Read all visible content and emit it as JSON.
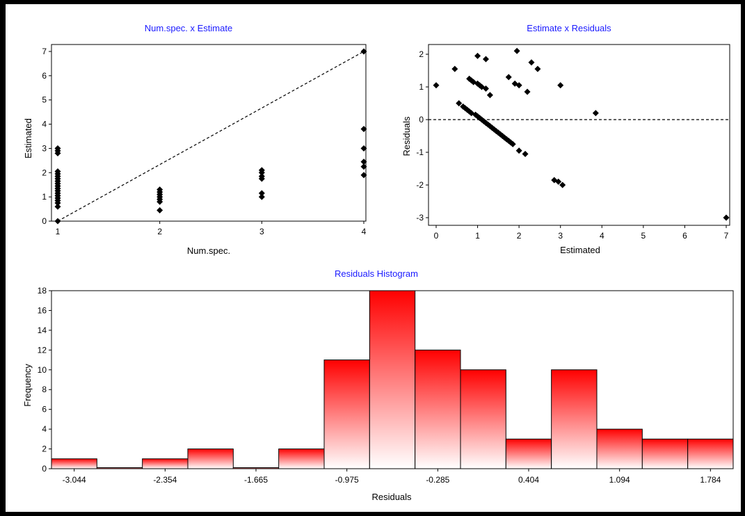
{
  "chart_data": [
    {
      "id": "scatter1",
      "type": "scatter",
      "title": "Num.spec. x Estimate",
      "xlabel": "Num.spec.",
      "ylabel": "Estimated",
      "xlim": [
        1,
        4
      ],
      "ylim": [
        0,
        7.2
      ],
      "xticks": [
        1,
        2,
        3,
        4
      ],
      "yticks": [
        0,
        1,
        2,
        3,
        4,
        5,
        6,
        7
      ],
      "reference_line": {
        "style": "dashed",
        "from": [
          1,
          0
        ],
        "to": [
          4,
          7
        ]
      },
      "points": [
        [
          1,
          0.0
        ],
        [
          1,
          0.6
        ],
        [
          1,
          0.75
        ],
        [
          1,
          0.85
        ],
        [
          1,
          0.95
        ],
        [
          1,
          1.05
        ],
        [
          1,
          1.15
        ],
        [
          1,
          1.25
        ],
        [
          1,
          1.35
        ],
        [
          1,
          1.45
        ],
        [
          1,
          1.55
        ],
        [
          1,
          1.65
        ],
        [
          1,
          1.75
        ],
        [
          1,
          1.85
        ],
        [
          1,
          1.95
        ],
        [
          1,
          2.05
        ],
        [
          1,
          2.8
        ],
        [
          1,
          2.9
        ],
        [
          1,
          3.0
        ],
        [
          2,
          0.45
        ],
        [
          2,
          0.8
        ],
        [
          2,
          0.9
        ],
        [
          2,
          1.0
        ],
        [
          2,
          1.1
        ],
        [
          2,
          1.2
        ],
        [
          2,
          1.3
        ],
        [
          3,
          1.0
        ],
        [
          3,
          1.15
        ],
        [
          3,
          1.75
        ],
        [
          3,
          1.85
        ],
        [
          3,
          2.0
        ],
        [
          3,
          2.1
        ],
        [
          4,
          1.9
        ],
        [
          4,
          2.25
        ],
        [
          4,
          2.45
        ],
        [
          4,
          3.0
        ],
        [
          4,
          3.8
        ],
        [
          4,
          7.0
        ]
      ],
      "color": "#000000"
    },
    {
      "id": "scatter2",
      "type": "scatter",
      "title": "Estimate x Residuals",
      "xlabel": "Estimated",
      "ylabel": "Residuals",
      "xlim": [
        -0.1,
        7.1
      ],
      "ylim": [
        -3.2,
        2.2
      ],
      "xticks": [
        0,
        1,
        2,
        3,
        4,
        5,
        6,
        7
      ],
      "yticks": [
        -3,
        -2,
        -1,
        0,
        1,
        2
      ],
      "reference_line": {
        "style": "dashed",
        "y": 0
      },
      "points": [
        [
          0.0,
          1.05
        ],
        [
          0.45,
          1.55
        ],
        [
          0.55,
          0.5
        ],
        [
          0.65,
          0.4
        ],
        [
          0.7,
          0.35
        ],
        [
          0.75,
          0.3
        ],
        [
          0.8,
          0.25
        ],
        [
          0.85,
          0.2
        ],
        [
          0.8,
          1.25
        ],
        [
          0.85,
          1.2
        ],
        [
          0.9,
          1.15
        ],
        [
          0.95,
          0.15
        ],
        [
          1.0,
          0.1
        ],
        [
          1.0,
          1.1
        ],
        [
          1.05,
          1.05
        ],
        [
          1.05,
          0.05
        ],
        [
          1.1,
          1.0
        ],
        [
          1.1,
          0.0
        ],
        [
          1.15,
          -0.05
        ],
        [
          1.2,
          0.95
        ],
        [
          1.2,
          -0.1
        ],
        [
          1.25,
          -0.15
        ],
        [
          1.3,
          0.75
        ],
        [
          1.3,
          -0.2
        ],
        [
          1.35,
          -0.25
        ],
        [
          1.4,
          -0.3
        ],
        [
          1.45,
          -0.35
        ],
        [
          1.5,
          -0.4
        ],
        [
          1.55,
          -0.45
        ],
        [
          1.6,
          -0.5
        ],
        [
          1.65,
          -0.55
        ],
        [
          1.7,
          -0.6
        ],
        [
          1.75,
          -0.65
        ],
        [
          1.8,
          -0.7
        ],
        [
          1.85,
          -0.75
        ],
        [
          1.0,
          1.95
        ],
        [
          1.2,
          1.85
        ],
        [
          1.75,
          1.3
        ],
        [
          1.9,
          1.1
        ],
        [
          2.0,
          1.05
        ],
        [
          1.95,
          2.1
        ],
        [
          2.2,
          0.85
        ],
        [
          2.3,
          1.75
        ],
        [
          2.45,
          1.55
        ],
        [
          2.0,
          -0.95
        ],
        [
          2.15,
          -1.05
        ],
        [
          2.85,
          -1.85
        ],
        [
          2.95,
          -1.9
        ],
        [
          3.05,
          -2.0
        ],
        [
          3.0,
          1.05
        ],
        [
          3.85,
          0.2
        ],
        [
          7.0,
          -3.0
        ]
      ],
      "color": "#000000"
    },
    {
      "id": "hist",
      "type": "bar",
      "title": "Residuals Histogram",
      "xlabel": "Residuals",
      "ylabel": "Frequency",
      "x_tick_labels": [
        "-3.044",
        "-2.354",
        "-1.665",
        "-0.975",
        "-0.285",
        "0.404",
        "1.094",
        "1.784"
      ],
      "ylim": [
        0,
        18
      ],
      "yticks": [
        0,
        2,
        4,
        6,
        8,
        10,
        12,
        14,
        16,
        18
      ],
      "values": [
        1,
        0,
        1,
        2,
        0,
        2,
        11,
        18,
        12,
        10,
        3,
        10,
        4,
        3,
        3
      ],
      "bar_color_top": "#ff0000",
      "bar_color_bottom": "#ffffff"
    }
  ]
}
